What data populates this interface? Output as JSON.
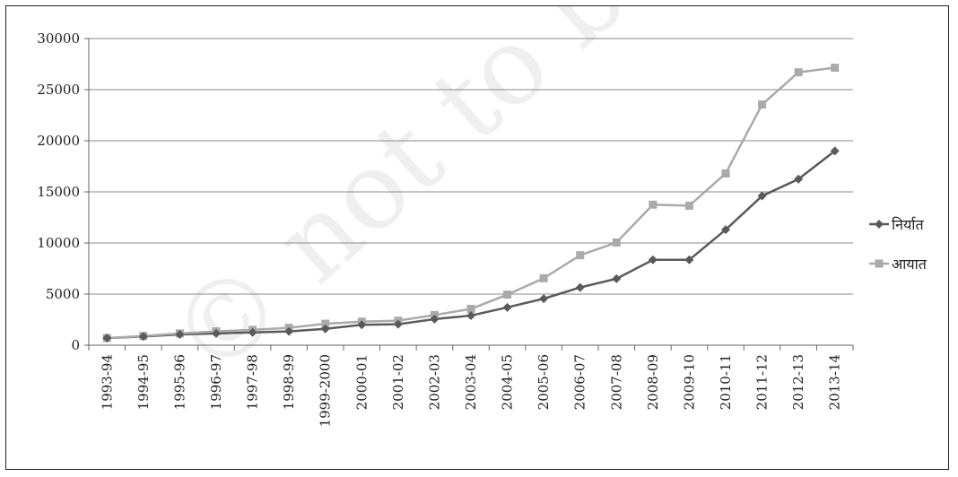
{
  "chart_data": {
    "type": "line",
    "title": "",
    "xlabel": "",
    "ylabel": "",
    "categories": [
      "1993-94",
      "1994-95",
      "1995-96",
      "1996-97",
      "1997-98",
      "1998-99",
      "1999-2000",
      "2000-01",
      "2001-02",
      "2002-03",
      "2003-04",
      "2004-05",
      "2005-06",
      "2006-07",
      "2007-08",
      "2008-09",
      "2009-10",
      "2010-11",
      "2011-12",
      "2012-13",
      "2013-14"
    ],
    "ylim": [
      0,
      30000
    ],
    "yticks": [
      0,
      5000,
      10000,
      15000,
      20000,
      25000,
      30000
    ],
    "grid": true,
    "legend_position": "right",
    "series": [
      {
        "name": "निर्यात",
        "color": "#5a5a5a",
        "marker": "diamond",
        "values": [
          700,
          850,
          1050,
          1150,
          1250,
          1350,
          1600,
          2000,
          2050,
          2550,
          2900,
          3700,
          4550,
          5650,
          6500,
          8350,
          8350,
          11300,
          14600,
          16250,
          19000
        ]
      },
      {
        "name": "आयात",
        "color": "#aaaaaa",
        "marker": "square",
        "values": [
          700,
          900,
          1150,
          1350,
          1500,
          1700,
          2100,
          2300,
          2400,
          2950,
          3550,
          4950,
          6550,
          8800,
          10050,
          13750,
          13650,
          16800,
          23550,
          26700,
          27150
        ]
      }
    ]
  },
  "watermark": "© not to be re"
}
